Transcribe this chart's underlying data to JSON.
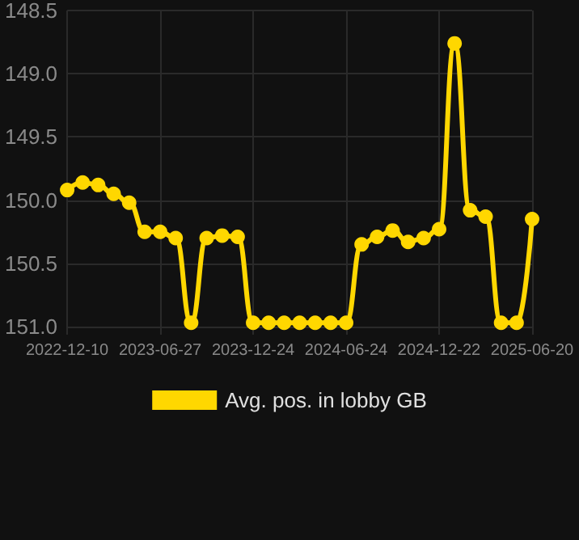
{
  "chart_data": {
    "type": "line",
    "categories": [
      "2022-12-10",
      null,
      null,
      null,
      null,
      null,
      "2023-06-27",
      null,
      null,
      null,
      null,
      null,
      "2023-12-24",
      null,
      null,
      null,
      null,
      null,
      "2024-06-24",
      null,
      null,
      null,
      null,
      null,
      "2024-12-22",
      null,
      null,
      null,
      null,
      null,
      "2025-06-20"
    ],
    "series": [
      {
        "name": "Avg. pos. in lobby GB",
        "color": "#ffd700",
        "values": [
          149.92,
          149.86,
          149.88,
          149.95,
          150.02,
          150.25,
          150.25,
          150.3,
          150.97,
          150.3,
          150.28,
          150.29,
          150.97,
          150.97,
          150.97,
          150.97,
          150.97,
          150.97,
          150.97,
          150.35,
          150.29,
          150.24,
          150.33,
          150.3,
          150.23,
          148.76,
          150.08,
          150.13,
          150.97,
          150.97,
          150.15
        ]
      }
    ],
    "ylim": [
      151.0,
      148.5
    ],
    "yticks": [
      {
        "value": 148.5,
        "label": "148.5"
      },
      {
        "value": 149.0,
        "label": "149.0"
      },
      {
        "value": 149.5,
        "label": "149.5"
      },
      {
        "value": 150.0,
        "label": "150.0"
      },
      {
        "value": 150.5,
        "label": "150.5"
      },
      {
        "value": 151.0,
        "label": "151.0"
      }
    ],
    "grid": true,
    "legend": "bottom",
    "marker": "circle",
    "line_style": "solid"
  }
}
